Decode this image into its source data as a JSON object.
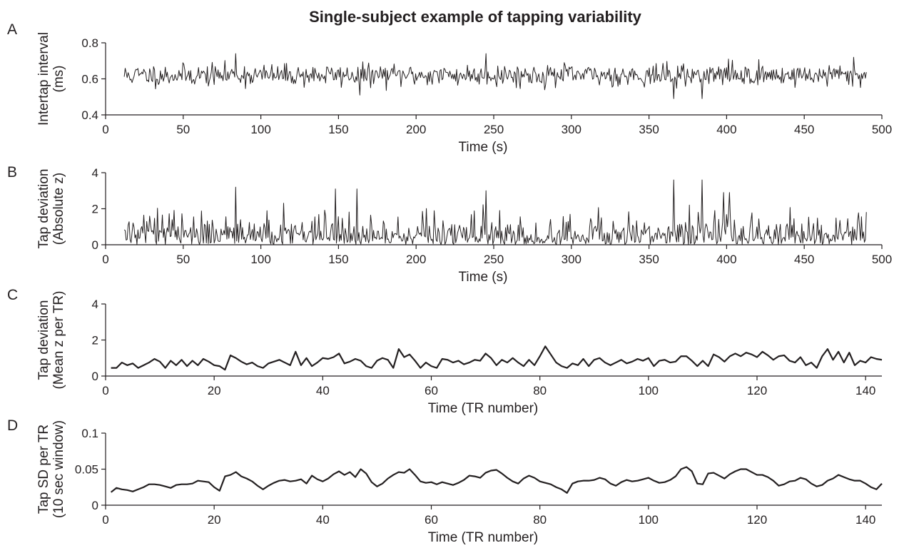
{
  "figure": {
    "title": "Single-subject example of tapping variability"
  },
  "chart_data": [
    {
      "type": "line",
      "panel": "A",
      "xlabel": "Time (s)",
      "ylabel": [
        "Intertap interval",
        "(ms)"
      ],
      "xlim": [
        0,
        500
      ],
      "ylim": [
        0.4,
        0.8
      ],
      "x_ticks": [
        0,
        50,
        100,
        150,
        200,
        250,
        300,
        350,
        400,
        450,
        500
      ],
      "y_ticks": [
        "0.4",
        "0.6",
        "0.8"
      ],
      "x_range": [
        12,
        490
      ],
      "n_points": 760,
      "seed": 11,
      "y_baseline": 0.62,
      "y_noise_sd": 0.03,
      "y_min_clip": 0.5,
      "spikes": [
        {
          "x": 84,
          "y": 0.74
        },
        {
          "x": 164,
          "y": 0.51
        },
        {
          "x": 245,
          "y": 0.74
        },
        {
          "x": 366,
          "y": 0.49
        },
        {
          "x": 384,
          "y": 0.49
        },
        {
          "x": 401,
          "y": 0.71
        },
        {
          "x": 482,
          "y": 0.72
        }
      ]
    },
    {
      "type": "line",
      "panel": "B",
      "xlabel": "Time (s)",
      "ylabel": [
        "Tap deviation",
        "(Absolute z)"
      ],
      "xlim": [
        0,
        500
      ],
      "ylim": [
        0,
        4
      ],
      "x_ticks": [
        0,
        50,
        100,
        150,
        200,
        250,
        300,
        350,
        400,
        450,
        500
      ],
      "y_ticks": [
        "0",
        "2",
        "4"
      ],
      "x_range": [
        12,
        490
      ],
      "n_points": 760,
      "seed": 23,
      "spikes": [
        {
          "x": 84,
          "y": 3.2
        },
        {
          "x": 148,
          "y": 3.1
        },
        {
          "x": 162,
          "y": 3.1
        },
        {
          "x": 245,
          "y": 3.0
        },
        {
          "x": 366,
          "y": 3.6
        },
        {
          "x": 384,
          "y": 3.6
        },
        {
          "x": 398,
          "y": 2.9
        },
        {
          "x": 402,
          "y": 2.9
        }
      ]
    },
    {
      "type": "line",
      "panel": "C",
      "xlabel": "Time (TR number)",
      "ylabel": [
        "Tap deviation",
        "(Mean z per TR)"
      ],
      "xlim": [
        0,
        143
      ],
      "ylim": [
        0,
        4
      ],
      "x_ticks": [
        0,
        20,
        40,
        60,
        80,
        100,
        120,
        140
      ],
      "y_ticks": [
        "0",
        "2",
        "4"
      ],
      "x": [
        1,
        2,
        3,
        4,
        5,
        6,
        7,
        8,
        9,
        10,
        11,
        12,
        13,
        14,
        15,
        16,
        17,
        18,
        19,
        20,
        21,
        22,
        23,
        24,
        25,
        26,
        27,
        28,
        29,
        30,
        31,
        32,
        33,
        34,
        35,
        36,
        37,
        38,
        39,
        40,
        41,
        42,
        43,
        44,
        45,
        46,
        47,
        48,
        49,
        50,
        51,
        52,
        53,
        54,
        55,
        56,
        57,
        58,
        59,
        60,
        61,
        62,
        63,
        64,
        65,
        66,
        67,
        68,
        69,
        70,
        71,
        72,
        73,
        74,
        75,
        76,
        77,
        78,
        79,
        80,
        81,
        82,
        83,
        84,
        85,
        86,
        87,
        88,
        89,
        90,
        91,
        92,
        93,
        94,
        95,
        96,
        97,
        98,
        99,
        100,
        101,
        102,
        103,
        104,
        105,
        106,
        107,
        108,
        109,
        110,
        111,
        112,
        113,
        114,
        115,
        116,
        117,
        118,
        119,
        120,
        121,
        122,
        123,
        124,
        125,
        126,
        127,
        128,
        129,
        130,
        131,
        132,
        133,
        134,
        135,
        136,
        137,
        138,
        139,
        140,
        141,
        142,
        143
      ],
      "values": [
        0.45,
        0.45,
        0.75,
        0.6,
        0.7,
        0.45,
        0.6,
        0.75,
        0.95,
        0.8,
        0.45,
        0.85,
        0.6,
        0.9,
        0.55,
        0.85,
        0.6,
        0.95,
        0.8,
        0.6,
        0.55,
        0.35,
        1.15,
        1.0,
        0.8,
        0.65,
        0.75,
        0.55,
        0.45,
        0.7,
        0.8,
        0.9,
        0.75,
        0.6,
        1.35,
        0.6,
        1.0,
        0.55,
        0.75,
        1.0,
        0.95,
        1.05,
        1.25,
        0.7,
        0.8,
        0.95,
        0.85,
        0.55,
        0.45,
        0.85,
        1.0,
        0.9,
        0.45,
        1.5,
        1.05,
        1.2,
        0.85,
        0.45,
        0.75,
        0.55,
        0.45,
        0.95,
        0.9,
        0.75,
        0.85,
        0.65,
        0.75,
        0.9,
        0.85,
        1.25,
        1.0,
        0.6,
        0.9,
        0.75,
        1.0,
        0.75,
        0.55,
        0.9,
        0.6,
        1.1,
        1.65,
        1.2,
        0.75,
        0.55,
        0.45,
        0.7,
        0.6,
        0.95,
        0.55,
        0.9,
        1.0,
        0.75,
        0.6,
        0.75,
        0.9,
        0.7,
        0.8,
        0.95,
        0.85,
        1.0,
        0.55,
        0.85,
        0.9,
        0.75,
        0.8,
        1.1,
        1.1,
        0.85,
        0.55,
        0.85,
        0.55,
        1.2,
        1.05,
        0.8,
        1.1,
        1.25,
        1.1,
        1.3,
        1.2,
        1.05,
        1.35,
        1.15,
        0.9,
        1.1,
        1.15,
        0.85,
        0.75,
        1.05,
        0.6,
        0.75,
        0.45,
        1.1,
        1.5,
        0.9,
        1.35,
        0.75,
        1.3,
        0.6,
        0.85,
        0.75,
        1.05,
        0.95,
        0.9
      ]
    },
    {
      "type": "line",
      "panel": "D",
      "xlabel": "Time (TR number)",
      "ylabel": [
        "Tap SD per TR",
        "(10 sec window)"
      ],
      "xlim": [
        0,
        143
      ],
      "ylim": [
        0,
        0.1
      ],
      "x_ticks": [
        0,
        20,
        40,
        60,
        80,
        100,
        120,
        140
      ],
      "y_ticks": [
        "0",
        "0.05",
        "0.1"
      ],
      "x": [
        1,
        2,
        3,
        4,
        5,
        6,
        7,
        8,
        9,
        10,
        11,
        12,
        13,
        14,
        15,
        16,
        17,
        18,
        19,
        20,
        21,
        22,
        23,
        24,
        25,
        26,
        27,
        28,
        29,
        30,
        31,
        32,
        33,
        34,
        35,
        36,
        37,
        38,
        39,
        40,
        41,
        42,
        43,
        44,
        45,
        46,
        47,
        48,
        49,
        50,
        51,
        52,
        53,
        54,
        55,
        56,
        57,
        58,
        59,
        60,
        61,
        62,
        63,
        64,
        65,
        66,
        67,
        68,
        69,
        70,
        71,
        72,
        73,
        74,
        75,
        76,
        77,
        78,
        79,
        80,
        81,
        82,
        83,
        84,
        85,
        86,
        87,
        88,
        89,
        90,
        91,
        92,
        93,
        94,
        95,
        96,
        97,
        98,
        99,
        100,
        101,
        102,
        103,
        104,
        105,
        106,
        107,
        108,
        109,
        110,
        111,
        112,
        113,
        114,
        115,
        116,
        117,
        118,
        119,
        120,
        121,
        122,
        123,
        124,
        125,
        126,
        127,
        128,
        129,
        130,
        131,
        132,
        133,
        134,
        135,
        136,
        137,
        138,
        139,
        140,
        141,
        142,
        143
      ],
      "values": [
        0.018,
        0.024,
        0.022,
        0.021,
        0.019,
        0.022,
        0.025,
        0.029,
        0.029,
        0.028,
        0.026,
        0.024,
        0.028,
        0.029,
        0.029,
        0.03,
        0.034,
        0.033,
        0.032,
        0.025,
        0.02,
        0.04,
        0.042,
        0.046,
        0.04,
        0.037,
        0.033,
        0.027,
        0.022,
        0.027,
        0.031,
        0.034,
        0.035,
        0.033,
        0.034,
        0.036,
        0.03,
        0.041,
        0.036,
        0.033,
        0.037,
        0.043,
        0.047,
        0.042,
        0.046,
        0.039,
        0.05,
        0.044,
        0.032,
        0.026,
        0.03,
        0.037,
        0.042,
        0.046,
        0.045,
        0.05,
        0.042,
        0.033,
        0.031,
        0.032,
        0.029,
        0.032,
        0.03,
        0.028,
        0.031,
        0.035,
        0.041,
        0.04,
        0.038,
        0.045,
        0.048,
        0.049,
        0.044,
        0.038,
        0.033,
        0.03,
        0.037,
        0.041,
        0.038,
        0.033,
        0.031,
        0.029,
        0.025,
        0.022,
        0.017,
        0.03,
        0.033,
        0.034,
        0.034,
        0.035,
        0.038,
        0.036,
        0.03,
        0.027,
        0.032,
        0.035,
        0.033,
        0.034,
        0.036,
        0.038,
        0.034,
        0.031,
        0.032,
        0.035,
        0.04,
        0.05,
        0.053,
        0.047,
        0.03,
        0.029,
        0.044,
        0.045,
        0.041,
        0.037,
        0.043,
        0.047,
        0.05,
        0.05,
        0.046,
        0.042,
        0.042,
        0.039,
        0.034,
        0.027,
        0.029,
        0.033,
        0.034,
        0.038,
        0.036,
        0.03,
        0.026,
        0.028,
        0.034,
        0.037,
        0.042,
        0.039,
        0.036,
        0.034,
        0.034,
        0.03,
        0.025,
        0.022,
        0.03
      ]
    }
  ]
}
